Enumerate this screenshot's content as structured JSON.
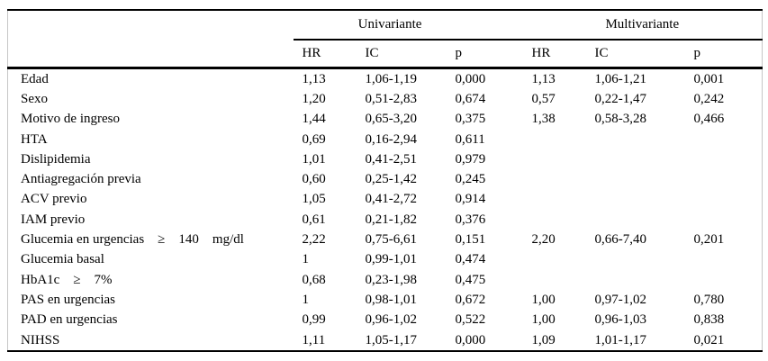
{
  "table": {
    "group_headers": [
      {
        "label": "Univariante"
      },
      {
        "label": "Multivariante"
      }
    ],
    "col_headers": [
      "HR",
      "IC",
      "p",
      "HR",
      "IC",
      "p"
    ],
    "rows": [
      {
        "label": "Edad",
        "uni_hr": "1,13",
        "uni_ic": "1,06-1,19",
        "uni_p": "0,000",
        "multi_hr": "1,13",
        "multi_ic": "1,06-1,21",
        "multi_p": "0,001"
      },
      {
        "label": "Sexo",
        "uni_hr": "1,20",
        "uni_ic": "0,51-2,83",
        "uni_p": "0,674",
        "multi_hr": "0,57",
        "multi_ic": "0,22-1,47",
        "multi_p": "0,242"
      },
      {
        "label": "Motivo de ingreso",
        "uni_hr": "1,44",
        "uni_ic": "0,65-3,20",
        "uni_p": "0,375",
        "multi_hr": "1,38",
        "multi_ic": "0,58-3,28",
        "multi_p": "0,466"
      },
      {
        "label": "HTA",
        "uni_hr": "0,69",
        "uni_ic": "0,16-2,94",
        "uni_p": "0,611",
        "multi_hr": "",
        "multi_ic": "",
        "multi_p": ""
      },
      {
        "label": "Dislipidemia",
        "uni_hr": "1,01",
        "uni_ic": "0,41-2,51",
        "uni_p": "0,979",
        "multi_hr": "",
        "multi_ic": "",
        "multi_p": ""
      },
      {
        "label": "Antiagregación previa",
        "uni_hr": "0,60",
        "uni_ic": "0,25-1,42",
        "uni_p": "0,245",
        "multi_hr": "",
        "multi_ic": "",
        "multi_p": ""
      },
      {
        "label": "ACV previo",
        "uni_hr": "1,05",
        "uni_ic": "0,41-2,72",
        "uni_p": "0,914",
        "multi_hr": "",
        "multi_ic": "",
        "multi_p": ""
      },
      {
        "label": "IAM previo",
        "uni_hr": "0,61",
        "uni_ic": "0,21-1,82",
        "uni_p": "0,376",
        "multi_hr": "",
        "multi_ic": "",
        "multi_p": ""
      },
      {
        "label": "Glucemia en urgencias    ≥    140    mg/dl",
        "uni_hr": "2,22",
        "uni_ic": "0,75-6,61",
        "uni_p": "0,151",
        "multi_hr": "2,20",
        "multi_ic": "0,66-7,40",
        "multi_p": "0,201"
      },
      {
        "label": "Glucemia basal",
        "uni_hr": "1",
        "uni_ic": "0,99-1,01",
        "uni_p": "0,474",
        "multi_hr": "",
        "multi_ic": "",
        "multi_p": ""
      },
      {
        "label": "HbA1c    ≥    7%",
        "uni_hr": "0,68",
        "uni_ic": "0,23-1,98",
        "uni_p": "0,475",
        "multi_hr": "",
        "multi_ic": "",
        "multi_p": ""
      },
      {
        "label": "PAS en urgencias",
        "uni_hr": "1",
        "uni_ic": "0,98-1,01",
        "uni_p": "0,672",
        "multi_hr": "1,00",
        "multi_ic": "0,97-1,02",
        "multi_p": "0,780"
      },
      {
        "label": "PAD en urgencias",
        "uni_hr": "0,99",
        "uni_ic": "0,96-1,02",
        "uni_p": "0,522",
        "multi_hr": "1,00",
        "multi_ic": "0,96-1,03",
        "multi_p": "0,838"
      },
      {
        "label": "NIHSS",
        "uni_hr": "1,11",
        "uni_ic": "1,05-1,17",
        "uni_p": "0,000",
        "multi_hr": "1,09",
        "multi_ic": "1,01-1,17",
        "multi_p": "0,021"
      }
    ]
  }
}
